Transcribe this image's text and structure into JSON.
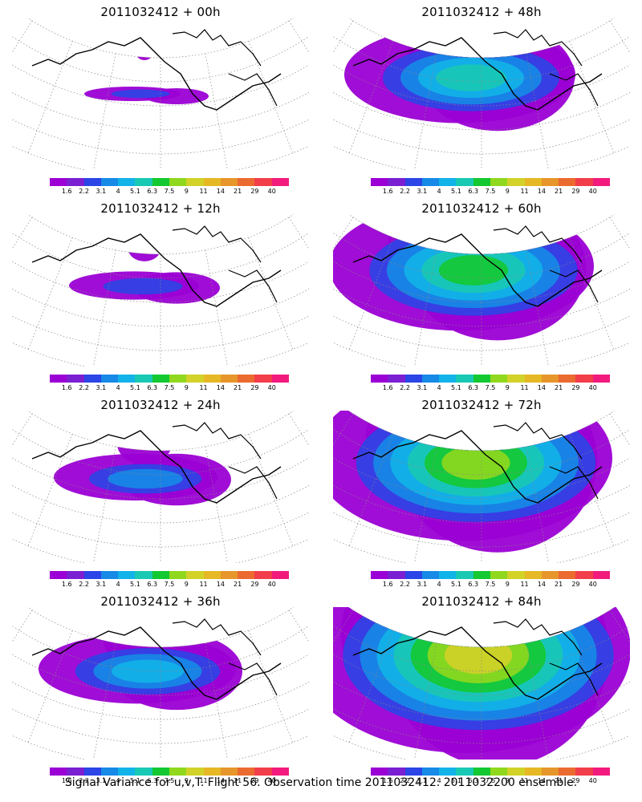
{
  "panels": [
    {
      "title": "2011032412 + 00h",
      "intensity": 0
    },
    {
      "title": "2011032412 + 48h",
      "intensity": 4
    },
    {
      "title": "2011032412 + 12h",
      "intensity": 1
    },
    {
      "title": "2011032412 + 60h",
      "intensity": 5
    },
    {
      "title": "2011032412 + 24h",
      "intensity": 2
    },
    {
      "title": "2011032412 + 72h",
      "intensity": 6
    },
    {
      "title": "2011032412 + 36h",
      "intensity": 3
    },
    {
      "title": "2011032412 + 84h",
      "intensity": 7
    }
  ],
  "colorbar": {
    "colors": [
      "#9b00d4",
      "#7a1fd1",
      "#2b45e6",
      "#168ae6",
      "#12b3e8",
      "#18c9b4",
      "#14c832",
      "#8fd81d",
      "#d2d228",
      "#e6b825",
      "#e6962a",
      "#eb6a30",
      "#f23d4a",
      "#f21a7d"
    ],
    "labels": [
      "1.6",
      "2.2",
      "3.1",
      "4",
      "5.1",
      "6.3",
      "7.5",
      "9",
      "11",
      "14",
      "21",
      "29",
      "40"
    ]
  },
  "caption": "Signal Variance for u,v,T. Flight 56. Observation time 2011032412. 2011032200 ensemble."
}
